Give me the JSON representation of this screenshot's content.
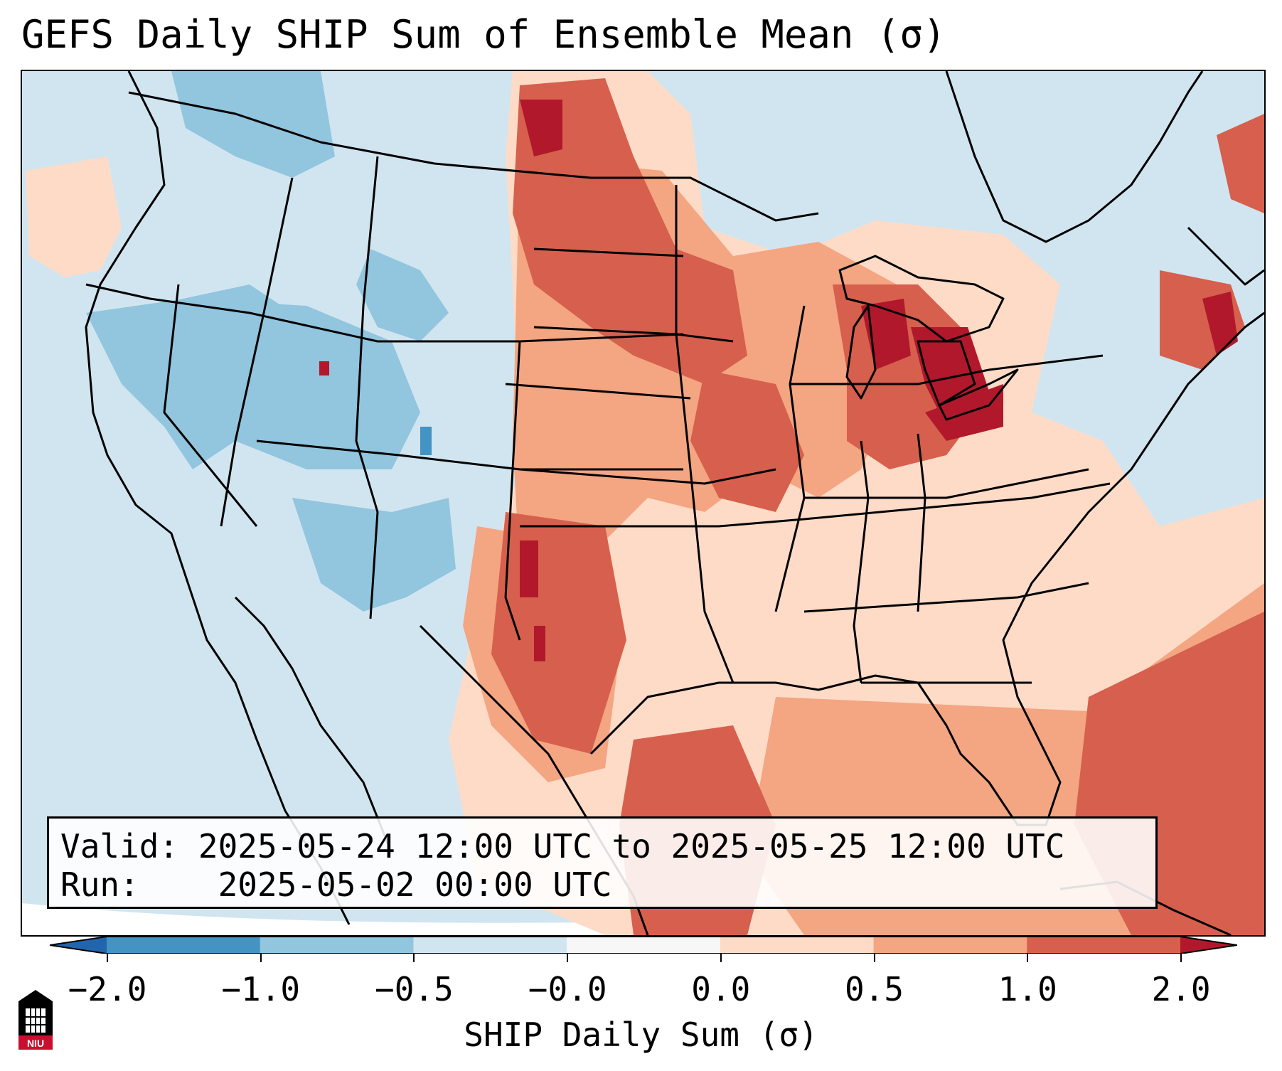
{
  "title": "GEFS Daily SHIP Sum of Ensemble Mean (σ)",
  "info": {
    "valid_label": "Valid:",
    "valid_value": "2025-05-24 12:00 UTC to 2025-05-25 12:00 UTC",
    "run_label": "Run:",
    "run_value": "2025-05-02 00:00 UTC"
  },
  "colorbar": {
    "label": "SHIP Daily Sum (σ)",
    "ticks": [
      "−2.0",
      "−1.0",
      "−0.5",
      "−0.0",
      "0.0",
      "0.5",
      "1.0",
      "2.0"
    ],
    "bins": [
      {
        "range": "< -2.0",
        "color": "#2166ac"
      },
      {
        "range": "-2.0 to -1.0",
        "color": "#4393c3"
      },
      {
        "range": "-1.0 to -0.5",
        "color": "#92c5de"
      },
      {
        "range": "-0.5 to -0.0",
        "color": "#d1e5f0"
      },
      {
        "range": "-0.0 to 0.0",
        "color": "#f7f7f7"
      },
      {
        "range": "0.0 to 0.5",
        "color": "#fddbc7"
      },
      {
        "range": "0.5 to 1.0",
        "color": "#f4a582"
      },
      {
        "range": "1.0 to 2.0",
        "color": "#d6604d"
      },
      {
        "range": "> 2.0",
        "color": "#b2182b"
      }
    ]
  },
  "logo": {
    "text": "NIU",
    "icon": "niu-building-logo"
  }
}
